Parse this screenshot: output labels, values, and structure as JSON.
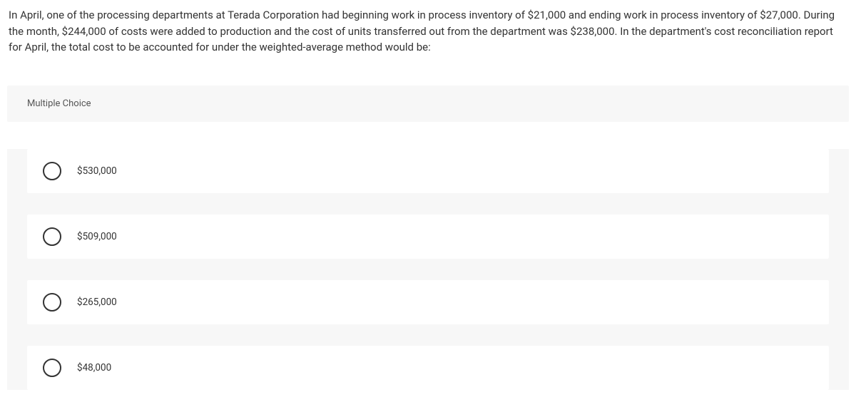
{
  "question": {
    "text": "In April, one of the processing departments at Terada Corporation had beginning work in process inventory of $21,000 and ending work in process inventory of $27,000. During the month, $244,000 of costs were added to production and the cost of units transferred out from the department was $238,000. In the department's cost reconciliation report for April, the total cost to be accounted for under the weighted-average method would be:"
  },
  "section": {
    "header": "Multiple Choice"
  },
  "options": [
    {
      "label": "$530,000"
    },
    {
      "label": "$509,000"
    },
    {
      "label": "$265,000"
    },
    {
      "label": "$48,000"
    }
  ],
  "colors": {
    "background": "#ffffff",
    "section_bg": "#f7f7f7",
    "text": "#333333",
    "radio_border": "#333333"
  }
}
